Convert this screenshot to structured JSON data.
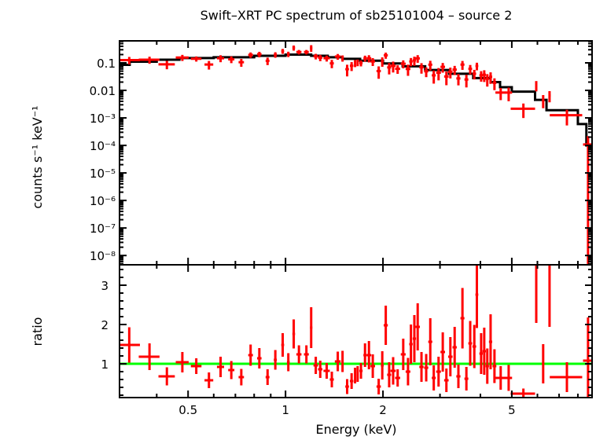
{
  "chart_data": [
    {
      "type": "scatter",
      "panel": "spectrum",
      "title": "Swift–XRT PC spectrum of sb25101004 – source 2",
      "ylabel": "counts s⁻¹ keV⁻¹",
      "xlabel": "",
      "xscale": "log",
      "yscale": "log",
      "xlim": [
        0.307,
        8.85
      ],
      "ylim": [
        4.6e-09,
        0.63
      ],
      "yticks": [
        {
          "value": 0.1,
          "label": "0.1"
        },
        {
          "value": 0.01,
          "label": "0.01"
        },
        {
          "value": 0.001,
          "label": "10⁻³"
        },
        {
          "value": 0.0001,
          "label": "10⁻⁴"
        },
        {
          "value": 1e-05,
          "label": "10⁻⁵"
        },
        {
          "value": 1e-06,
          "label": "10⁻⁶"
        },
        {
          "value": 1e-07,
          "label": "10⁻⁷"
        },
        {
          "value": 1e-08,
          "label": "10⁻⁸"
        }
      ],
      "colors": {
        "data": "#ff0000",
        "model": "#000000"
      },
      "model_bins": [
        [
          0.3,
          0.33,
          0.085
        ],
        [
          0.33,
          0.4,
          0.11
        ],
        [
          0.4,
          0.47,
          0.13
        ],
        [
          0.47,
          0.6,
          0.15
        ],
        [
          0.6,
          0.8,
          0.16
        ],
        [
          0.8,
          1.0,
          0.18
        ],
        [
          1.0,
          1.2,
          0.2
        ],
        [
          1.2,
          1.35,
          0.18
        ],
        [
          1.35,
          1.5,
          0.16
        ],
        [
          1.5,
          1.7,
          0.14
        ],
        [
          1.7,
          2.0,
          0.12
        ],
        [
          2.0,
          2.3,
          0.095
        ],
        [
          2.3,
          2.7,
          0.075
        ],
        [
          2.7,
          3.2,
          0.055
        ],
        [
          3.2,
          3.8,
          0.04
        ],
        [
          3.8,
          4.3,
          0.028
        ],
        [
          4.3,
          4.6,
          0.02
        ],
        [
          4.6,
          5.0,
          0.013
        ],
        [
          5.0,
          5.9,
          0.009
        ],
        [
          5.9,
          6.4,
          0.0045
        ],
        [
          6.4,
          8.0,
          0.0019
        ],
        [
          8.0,
          8.5,
          0.0006
        ],
        [
          8.5,
          8.85,
          0.0001
        ]
      ]
    },
    {
      "type": "scatter",
      "panel": "ratio",
      "xlabel": "Energy (keV)",
      "ylabel": "ratio",
      "xscale": "log",
      "xlim": [
        0.307,
        8.85
      ],
      "ylim": [
        0.14,
        3.52
      ],
      "xticks": [
        {
          "value": 0.5,
          "label": "0.5"
        },
        {
          "value": 1,
          "label": "1"
        },
        {
          "value": 2,
          "label": "2"
        },
        {
          "value": 5,
          "label": "5"
        }
      ],
      "yticks": [
        {
          "value": 1,
          "label": "1"
        },
        {
          "value": 2,
          "label": "2"
        },
        {
          "value": 3,
          "label": "3"
        }
      ],
      "reference_line": 1,
      "colors": {
        "data": "#ff0000",
        "reference": "#00ff00"
      },
      "points": [
        {
          "e": 0.329,
          "de": 0.026,
          "r": 1.48,
          "err": 0.45
        },
        {
          "e": 0.38,
          "de": 0.028,
          "r": 1.18,
          "err": 0.34
        },
        {
          "e": 0.43,
          "de": 0.025,
          "r": 0.68,
          "err": 0.23
        },
        {
          "e": 0.48,
          "de": 0.022,
          "r": 1.04,
          "err": 0.26
        },
        {
          "e": 0.53,
          "de": 0.02,
          "r": 0.94,
          "err": 0.2
        },
        {
          "e": 0.58,
          "de": 0.018,
          "r": 0.58,
          "err": 0.2
        },
        {
          "e": 0.63,
          "de": 0.016,
          "r": 0.92,
          "err": 0.26
        },
        {
          "e": 0.68,
          "de": 0.015,
          "r": 0.84,
          "err": 0.23
        },
        {
          "e": 0.73,
          "de": 0.014,
          "r": 0.66,
          "err": 0.21
        },
        {
          "e": 0.78,
          "de": 0.013,
          "r": 1.22,
          "err": 0.27
        },
        {
          "e": 0.83,
          "de": 0.013,
          "r": 1.14,
          "err": 0.26
        },
        {
          "e": 0.88,
          "de": 0.012,
          "r": 0.66,
          "err": 0.2
        },
        {
          "e": 0.93,
          "de": 0.01,
          "r": 1.1,
          "err": 0.25
        },
        {
          "e": 0.98,
          "de": 0.01,
          "r": 1.48,
          "err": 0.3
        },
        {
          "e": 1.02,
          "de": 0.01,
          "r": 1.04,
          "err": 0.23
        },
        {
          "e": 1.06,
          "de": 0.01,
          "r": 1.76,
          "err": 0.37
        },
        {
          "e": 1.1,
          "de": 0.02,
          "r": 1.24,
          "err": 0.23
        },
        {
          "e": 1.16,
          "de": 0.02,
          "r": 1.24,
          "err": 0.23
        },
        {
          "e": 1.2,
          "de": 0.01,
          "r": 1.92,
          "err": 0.52
        },
        {
          "e": 1.24,
          "de": 0.02,
          "r": 0.96,
          "err": 0.22
        },
        {
          "e": 1.28,
          "de": 0.02,
          "r": 0.86,
          "err": 0.22
        },
        {
          "e": 1.34,
          "de": 0.03,
          "r": 0.82,
          "err": 0.2
        },
        {
          "e": 1.39,
          "de": 0.02,
          "r": 0.6,
          "err": 0.2
        },
        {
          "e": 1.45,
          "de": 0.03,
          "r": 1.06,
          "err": 0.25
        },
        {
          "e": 1.5,
          "de": 0.01,
          "r": 1.06,
          "err": 0.27
        },
        {
          "e": 1.55,
          "de": 0.02,
          "r": 0.42,
          "err": 0.19
        },
        {
          "e": 1.6,
          "de": 0.02,
          "r": 0.56,
          "err": 0.2
        },
        {
          "e": 1.64,
          "de": 0.01,
          "r": 0.7,
          "err": 0.2
        },
        {
          "e": 1.67,
          "de": 0.01,
          "r": 0.74,
          "err": 0.2
        },
        {
          "e": 1.71,
          "de": 0.02,
          "r": 0.82,
          "err": 0.2
        },
        {
          "e": 1.76,
          "de": 0.02,
          "r": 1.22,
          "err": 0.3
        },
        {
          "e": 1.81,
          "de": 0.03,
          "r": 1.22,
          "err": 0.36
        },
        {
          "e": 1.86,
          "de": 0.03,
          "r": 0.94,
          "err": 0.3
        },
        {
          "e": 1.94,
          "de": 0.03,
          "r": 0.42,
          "err": 0.2
        },
        {
          "e": 1.99,
          "de": 0.02,
          "r": 0.96,
          "err": 0.36
        },
        {
          "e": 2.04,
          "de": 0.03,
          "r": 1.98,
          "err": 0.5
        },
        {
          "e": 2.09,
          "de": 0.03,
          "r": 0.72,
          "err": 0.32
        },
        {
          "e": 2.15,
          "de": 0.04,
          "r": 0.82,
          "err": 0.35
        },
        {
          "e": 2.22,
          "de": 0.04,
          "r": 0.64,
          "err": 0.22
        },
        {
          "e": 2.31,
          "de": 0.04,
          "r": 1.24,
          "err": 0.4
        },
        {
          "e": 2.39,
          "de": 0.04,
          "r": 0.8,
          "err": 0.35
        },
        {
          "e": 2.44,
          "de": 0.03,
          "r": 1.5,
          "err": 0.5
        },
        {
          "e": 2.5,
          "de": 0.03,
          "r": 1.64,
          "err": 0.6
        },
        {
          "e": 2.56,
          "de": 0.04,
          "r": 1.94,
          "err": 0.6
        },
        {
          "e": 2.63,
          "de": 0.04,
          "r": 0.92,
          "err": 0.38
        },
        {
          "e": 2.72,
          "de": 0.04,
          "r": 0.9,
          "err": 0.35
        },
        {
          "e": 2.8,
          "de": 0.04,
          "r": 1.56,
          "err": 0.6
        },
        {
          "e": 2.87,
          "de": 0.04,
          "r": 0.64,
          "err": 0.32
        },
        {
          "e": 2.97,
          "de": 0.05,
          "r": 0.8,
          "err": 0.38
        },
        {
          "e": 3.06,
          "de": 0.05,
          "r": 1.3,
          "err": 0.5
        },
        {
          "e": 3.14,
          "de": 0.05,
          "r": 0.58,
          "err": 0.3
        },
        {
          "e": 3.23,
          "de": 0.05,
          "r": 1.18,
          "err": 0.5
        },
        {
          "e": 3.33,
          "de": 0.05,
          "r": 1.42,
          "err": 0.52
        },
        {
          "e": 3.42,
          "de": 0.05,
          "r": 0.68,
          "err": 0.3
        },
        {
          "e": 3.52,
          "de": 0.05,
          "r": 2.16,
          "err": 0.77
        },
        {
          "e": 3.62,
          "de": 0.05,
          "r": 0.62,
          "err": 0.3
        },
        {
          "e": 3.72,
          "de": 0.05,
          "r": 1.52,
          "err": 0.57
        },
        {
          "e": 3.83,
          "de": 0.05,
          "r": 1.44,
          "err": 0.55
        },
        {
          "e": 3.9,
          "de": 0.04,
          "r": 2.76,
          "err": 0.85
        },
        {
          "e": 4.02,
          "de": 0.05,
          "r": 1.26,
          "err": 0.52
        },
        {
          "e": 4.11,
          "de": 0.05,
          "r": 1.32,
          "err": 0.6
        },
        {
          "e": 4.2,
          "de": 0.05,
          "r": 0.94,
          "err": 0.45
        },
        {
          "e": 4.3,
          "de": 0.05,
          "r": 1.56,
          "err": 0.7
        },
        {
          "e": 4.42,
          "de": 0.06,
          "r": 0.94,
          "err": 0.43
        },
        {
          "e": 4.62,
          "de": 0.17,
          "r": 0.64,
          "err": 0.3
        },
        {
          "e": 4.89,
          "de": 0.12,
          "r": 0.64,
          "err": 0.33
        },
        {
          "e": 5.43,
          "de": 0.47,
          "r": 0.24,
          "err": 0.13
        },
        {
          "e": 5.95,
          "de": 0.05,
          "r": 3.44,
          "err": 1.4
        },
        {
          "e": 6.25,
          "de": 0.05,
          "r": 1.0,
          "err": 0.5
        },
        {
          "e": 6.54,
          "de": 0.05,
          "r": 3.44,
          "err": 1.5
        },
        {
          "e": 7.4,
          "de": 0.85,
          "r": 0.66,
          "err": 0.38
        },
        {
          "e": 8.6,
          "de": 0.3,
          "r": 1.08,
          "err": 1.1
        }
      ]
    }
  ]
}
